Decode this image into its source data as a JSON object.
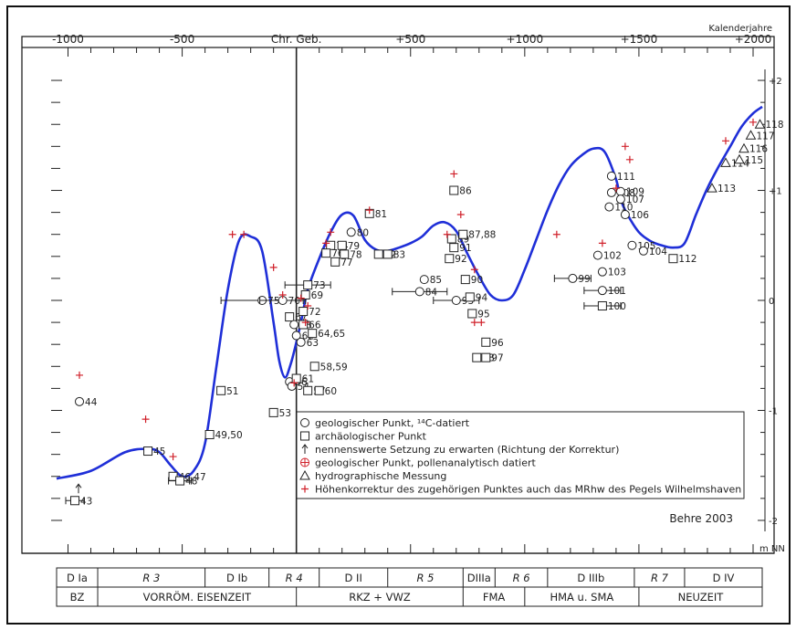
{
  "chart_data": {
    "type": "scatter",
    "title": "",
    "top_axis_label": "Kalenderjahre",
    "center_label": "Chr. Geb.",
    "x_ticks": [
      "-1000",
      "-500",
      "+500",
      "+1000",
      "+1500",
      "+2000"
    ],
    "right_axis_unit": "m NN",
    "y_ticks": [
      "+2",
      "+1",
      "0",
      "-1",
      "-2"
    ],
    "xlim": [
      -1050,
      2040
    ],
    "ylim": [
      -2.1,
      2.1
    ],
    "credit": "Behre 2003",
    "legend": [
      {
        "symbol": "circle",
        "text": "geologischer Punkt, ¹⁴C-datiert"
      },
      {
        "symbol": "square",
        "text": "archäologischer Punkt"
      },
      {
        "symbol": "arrow",
        "text": "nennenswerte Setzung zu erwarten (Richtung der Korrektur)"
      },
      {
        "symbol": "circleplus",
        "text": "geologischer Punkt, pollenanalytisch datiert"
      },
      {
        "symbol": "triangle",
        "text": "hydrographische Messung"
      },
      {
        "symbol": "plus",
        "text": "Höhenkorrektur des zugehörigen Punktes auch das MRhw des Pegels Wilhelmshaven"
      }
    ],
    "curve": {
      "x": [
        -1050,
        -900,
        -750,
        -650,
        -600,
        -550,
        -500,
        -450,
        -400,
        -350,
        -300,
        -250,
        -200,
        -150,
        -100,
        -75,
        -50,
        -25,
        0,
        25,
        50,
        100,
        150,
        200,
        250,
        300,
        350,
        400,
        450,
        500,
        550,
        600,
        650,
        700,
        750,
        800,
        850,
        900,
        950,
        1000,
        1050,
        1100,
        1150,
        1200,
        1250,
        1300,
        1350,
        1400,
        1420,
        1450,
        1500,
        1550,
        1600,
        1650,
        1700,
        1750,
        1800,
        1850,
        1900,
        1950,
        2000,
        2040
      ],
      "y": [
        -1.62,
        -1.55,
        -1.38,
        -1.35,
        -1.38,
        -1.5,
        -1.6,
        -1.55,
        -1.3,
        -0.6,
        0.1,
        0.55,
        0.58,
        0.45,
        -0.2,
        -0.55,
        -0.7,
        -0.58,
        -0.38,
        -0.15,
        0.1,
        0.38,
        0.62,
        0.78,
        0.77,
        0.55,
        0.46,
        0.45,
        0.48,
        0.52,
        0.58,
        0.68,
        0.71,
        0.63,
        0.42,
        0.22,
        0.05,
        0.0,
        0.05,
        0.28,
        0.55,
        0.82,
        1.05,
        1.22,
        1.32,
        1.38,
        1.35,
        1.1,
        0.92,
        0.78,
        0.62,
        0.54,
        0.5,
        0.48,
        0.52,
        0.78,
        1.02,
        1.22,
        1.4,
        1.58,
        1.7,
        1.76
      ]
    },
    "points": [
      {
        "label": "43",
        "x": -970,
        "y": -1.82,
        "marker": "square",
        "err": 40
      },
      {
        "label": "44",
        "x": -950,
        "y": -0.92,
        "marker": "circle",
        "err": 0
      },
      {
        "label": "45",
        "x": -650,
        "y": -1.37,
        "marker": "square",
        "err": 0
      },
      {
        "label": "46,47",
        "x": -540,
        "y": -1.6,
        "marker": "square",
        "err": 0
      },
      {
        "label": "48",
        "x": -510,
        "y": -1.64,
        "marker": "square",
        "err": 50
      },
      {
        "label": "49,50",
        "x": -380,
        "y": -1.22,
        "marker": "square",
        "err": 0
      },
      {
        "label": "51",
        "x": -330,
        "y": -0.82,
        "marker": "square",
        "err": 0
      },
      {
        "label": "53",
        "x": -100,
        "y": -1.02,
        "marker": "square",
        "err": 0
      },
      {
        "label": "56",
        "x": -30,
        "y": -0.74,
        "marker": "circle",
        "err": 0
      },
      {
        "label": "54",
        "x": -20,
        "y": -0.78,
        "marker": "circle",
        "err": 0
      },
      {
        "label": "61",
        "x": 0,
        "y": -0.71,
        "marker": "square",
        "err": 0
      },
      {
        "label": "57",
        "x": 50,
        "y": -0.82,
        "marker": "square",
        "err": 0
      },
      {
        "label": "60",
        "x": 100,
        "y": -0.82,
        "marker": "square",
        "err": 0
      },
      {
        "label": "58,59",
        "x": 80,
        "y": -0.6,
        "marker": "square",
        "err": 0
      },
      {
        "label": "75",
        "x": -150,
        "y": 0.0,
        "marker": "circle",
        "err": 180
      },
      {
        "label": "70",
        "x": -60,
        "y": 0.0,
        "marker": "circle",
        "err": 100
      },
      {
        "label": "67",
        "x": -30,
        "y": -0.15,
        "marker": "square",
        "err": 0
      },
      {
        "label": "68",
        "x": -10,
        "y": -0.22,
        "marker": "circle",
        "err": 0
      },
      {
        "label": "62",
        "x": 0,
        "y": -0.32,
        "marker": "circle",
        "err": 0
      },
      {
        "label": "63",
        "x": 20,
        "y": -0.38,
        "marker": "circle",
        "err": 0
      },
      {
        "label": "66",
        "x": 30,
        "y": -0.22,
        "marker": "square",
        "err": 0
      },
      {
        "label": "64,65",
        "x": 70,
        "y": -0.3,
        "marker": "square",
        "err": 0
      },
      {
        "label": "72",
        "x": 30,
        "y": -0.1,
        "marker": "square",
        "err": 0
      },
      {
        "label": "69",
        "x": 40,
        "y": 0.05,
        "marker": "square",
        "err": 0
      },
      {
        "label": "73",
        "x": 50,
        "y": 0.14,
        "marker": "square",
        "err": 100
      },
      {
        "label": "74",
        "x": 150,
        "y": 0.5,
        "marker": "square",
        "err": 0
      },
      {
        "label": "76",
        "x": 130,
        "y": 0.43,
        "marker": "square",
        "err": 0
      },
      {
        "label": "77",
        "x": 170,
        "y": 0.35,
        "marker": "square",
        "err": 0
      },
      {
        "label": "78",
        "x": 210,
        "y": 0.42,
        "marker": "square",
        "err": 0
      },
      {
        "label": "79",
        "x": 200,
        "y": 0.5,
        "marker": "square",
        "err": 0
      },
      {
        "label": "80",
        "x": 240,
        "y": 0.62,
        "marker": "circle",
        "err": 0
      },
      {
        "label": "81",
        "x": 320,
        "y": 0.79,
        "marker": "square",
        "err": 0
      },
      {
        "label": "82",
        "x": 360,
        "y": 0.42,
        "marker": "square",
        "err": 0
      },
      {
        "label": "83",
        "x": 400,
        "y": 0.42,
        "marker": "square",
        "err": 0
      },
      {
        "label": "85",
        "x": 560,
        "y": 0.19,
        "marker": "circle",
        "err": 0
      },
      {
        "label": "84",
        "x": 540,
        "y": 0.08,
        "marker": "circle",
        "err": 120
      },
      {
        "label": "86",
        "x": 690,
        "y": 1.0,
        "marker": "square",
        "err": 0
      },
      {
        "label": "89",
        "x": 680,
        "y": 0.56,
        "marker": "square",
        "err": 0
      },
      {
        "label": "87,88",
        "x": 730,
        "y": 0.6,
        "marker": "square",
        "err": 0
      },
      {
        "label": "91",
        "x": 690,
        "y": 0.48,
        "marker": "square",
        "err": 0
      },
      {
        "label": "92",
        "x": 670,
        "y": 0.38,
        "marker": "square",
        "err": 0
      },
      {
        "label": "90",
        "x": 740,
        "y": 0.19,
        "marker": "square",
        "err": 0
      },
      {
        "label": "93",
        "x": 700,
        "y": 0.0,
        "marker": "circle",
        "err": 100
      },
      {
        "label": "94",
        "x": 760,
        "y": 0.03,
        "marker": "square",
        "err": 0
      },
      {
        "label": "95",
        "x": 770,
        "y": -0.12,
        "marker": "square",
        "err": 0
      },
      {
        "label": "96",
        "x": 830,
        "y": -0.38,
        "marker": "square",
        "err": 0
      },
      {
        "label": "98",
        "x": 790,
        "y": -0.52,
        "marker": "square",
        "err": 0
      },
      {
        "label": "97",
        "x": 830,
        "y": -0.52,
        "marker": "square",
        "err": 0
      },
      {
        "label": "99",
        "x": 1210,
        "y": 0.2,
        "marker": "circle",
        "err": 80
      },
      {
        "label": "101",
        "x": 1340,
        "y": 0.09,
        "marker": "circle",
        "err": 80
      },
      {
        "label": "100",
        "x": 1340,
        "y": -0.05,
        "marker": "square",
        "err": 80
      },
      {
        "label": "102",
        "x": 1320,
        "y": 0.41,
        "marker": "circle",
        "err": 0
      },
      {
        "label": "103",
        "x": 1340,
        "y": 0.26,
        "marker": "circle",
        "err": 0
      },
      {
        "label": "111",
        "x": 1380,
        "y": 1.13,
        "marker": "circle",
        "err": 0
      },
      {
        "label": "108",
        "x": 1380,
        "y": 0.98,
        "marker": "circle",
        "err": 0
      },
      {
        "label": "109",
        "x": 1420,
        "y": 0.99,
        "marker": "circle",
        "err": 0
      },
      {
        "label": "107",
        "x": 1420,
        "y": 0.92,
        "marker": "circle",
        "err": 0
      },
      {
        "label": "110",
        "x": 1370,
        "y": 0.85,
        "marker": "circle",
        "err": 0
      },
      {
        "label": "106",
        "x": 1440,
        "y": 0.78,
        "marker": "circle",
        "err": 0
      },
      {
        "label": "105",
        "x": 1470,
        "y": 0.5,
        "marker": "circle",
        "err": 0
      },
      {
        "label": "104",
        "x": 1520,
        "y": 0.45,
        "marker": "circle",
        "err": 0
      },
      {
        "label": "112",
        "x": 1650,
        "y": 0.38,
        "marker": "square",
        "err": 0
      },
      {
        "label": "113",
        "x": 1820,
        "y": 1.02,
        "marker": "triangle",
        "err": 0
      },
      {
        "label": "114",
        "x": 1880,
        "y": 1.25,
        "marker": "triangle",
        "err": 0
      },
      {
        "label": "115",
        "x": 1940,
        "y": 1.28,
        "marker": "triangle",
        "err": 0
      },
      {
        "label": "116",
        "x": 1960,
        "y": 1.38,
        "marker": "triangle",
        "err": 0
      },
      {
        "label": "117",
        "x": 1990,
        "y": 1.5,
        "marker": "triangle",
        "err": 0
      },
      {
        "label": "118",
        "x": 2030,
        "y": 1.6,
        "marker": "triangle",
        "err": 0
      }
    ],
    "corrections": [
      [
        -950,
        -0.68
      ],
      [
        -660,
        -1.08
      ],
      [
        -540,
        -1.42
      ],
      [
        -280,
        0.6
      ],
      [
        -230,
        0.6
      ],
      [
        -100,
        0.3
      ],
      [
        -60,
        0.05
      ],
      [
        20,
        0.02
      ],
      [
        50,
        -0.05
      ],
      [
        40,
        -0.2
      ],
      [
        -10,
        -0.75
      ],
      [
        130,
        0.52
      ],
      [
        150,
        0.62
      ],
      [
        320,
        0.82
      ],
      [
        690,
        1.15
      ],
      [
        720,
        0.78
      ],
      [
        660,
        0.6
      ],
      [
        780,
        0.28
      ],
      [
        780,
        -0.2
      ],
      [
        810,
        -0.2
      ],
      [
        1140,
        0.6
      ],
      [
        1340,
        0.52
      ],
      [
        1440,
        1.4
      ],
      [
        1460,
        1.28
      ],
      [
        1400,
        1.02
      ],
      [
        1880,
        1.45
      ],
      [
        2000,
        1.62
      ]
    ],
    "period_rows": [
      [
        {
          "label": "D Ia",
          "italic": false,
          "from": -1050,
          "to": -870
        },
        {
          "label": "R 3",
          "italic": true,
          "from": -870,
          "to": -400
        },
        {
          "label": "D Ib",
          "italic": false,
          "from": -400,
          "to": -120
        },
        {
          "label": "R 4",
          "italic": true,
          "from": -120,
          "to": 100
        },
        {
          "label": "D II",
          "italic": false,
          "from": 100,
          "to": 400
        },
        {
          "label": "R 5",
          "italic": true,
          "from": 400,
          "to": 730
        },
        {
          "label": "DIIIa",
          "italic": false,
          "from": 730,
          "to": 870
        },
        {
          "label": "R 6",
          "italic": true,
          "from": 870,
          "to": 1100
        },
        {
          "label": "D IIIb",
          "italic": false,
          "from": 1100,
          "to": 1480
        },
        {
          "label": "R 7",
          "italic": true,
          "from": 1480,
          "to": 1700
        },
        {
          "label": "D IV",
          "italic": false,
          "from": 1700,
          "to": 2040
        }
      ],
      [
        {
          "label": "BZ",
          "italic": false,
          "from": -1050,
          "to": -870
        },
        {
          "label": "VORRÖM. EISENZEIT",
          "italic": false,
          "from": -870,
          "to": 0
        },
        {
          "label": "RKZ + VWZ",
          "italic": false,
          "from": 0,
          "to": 730
        },
        {
          "label": "FMA",
          "italic": false,
          "from": 730,
          "to": 1000
        },
        {
          "label": "HMA u. SMA",
          "italic": false,
          "from": 1000,
          "to": 1500
        },
        {
          "label": "NEUZEIT",
          "italic": false,
          "from": 1500,
          "to": 2040
        }
      ]
    ],
    "colors": {
      "curve": "#1f2fd8",
      "correction": "#d0202a",
      "ink": "#222222"
    }
  }
}
